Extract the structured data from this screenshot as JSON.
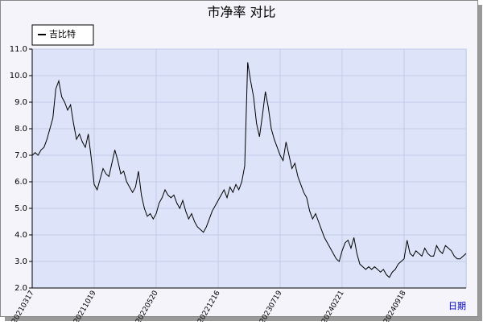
{
  "chart_data": {
    "type": "line",
    "title": "市净率  对比",
    "x_label": "日期",
    "categories": [
      "20210317",
      null,
      null,
      null,
      null,
      null,
      null,
      null,
      null,
      null,
      null,
      null,
      null,
      null,
      null,
      null,
      null,
      null,
      null,
      null,
      null,
      "20211019",
      null,
      null,
      null,
      null,
      null,
      null,
      null,
      null,
      null,
      null,
      null,
      null,
      null,
      null,
      null,
      null,
      null,
      null,
      null,
      null,
      "20220520",
      null,
      null,
      null,
      null,
      null,
      null,
      null,
      null,
      null,
      null,
      null,
      null,
      null,
      null,
      null,
      null,
      null,
      null,
      null,
      null,
      "20221216",
      null,
      null,
      null,
      null,
      null,
      null,
      null,
      null,
      null,
      null,
      null,
      null,
      null,
      null,
      null,
      null,
      null,
      null,
      null,
      null,
      "20230719",
      null,
      null,
      null,
      null,
      null,
      null,
      null,
      null,
      null,
      null,
      null,
      null,
      null,
      null,
      null,
      null,
      null,
      null,
      null,
      null,
      "20240221",
      null,
      null,
      null,
      null,
      null,
      null,
      null,
      null,
      null,
      null,
      null,
      null,
      null,
      null,
      null,
      null,
      null,
      null,
      null,
      null,
      "20240918",
      null,
      null,
      null,
      null,
      null,
      null,
      null,
      null,
      null,
      null,
      null,
      null,
      null,
      null,
      null,
      null,
      null,
      null,
      null,
      null,
      null
    ],
    "series": [
      {
        "name": "吉比特",
        "color": "#000000",
        "values": [
          7.0,
          7.1,
          7.0,
          7.2,
          7.3,
          7.6,
          8.0,
          8.4,
          9.5,
          9.8,
          9.2,
          9.0,
          8.7,
          8.9,
          8.2,
          7.6,
          7.8,
          7.5,
          7.3,
          7.8,
          6.9,
          5.9,
          5.7,
          6.1,
          6.5,
          6.3,
          6.2,
          6.7,
          7.2,
          6.8,
          6.3,
          6.4,
          6.0,
          5.8,
          5.6,
          5.8,
          6.4,
          5.5,
          5.0,
          4.7,
          4.8,
          4.6,
          4.8,
          5.2,
          5.4,
          5.7,
          5.5,
          5.4,
          5.5,
          5.2,
          5.0,
          5.3,
          4.9,
          4.6,
          4.8,
          4.5,
          4.3,
          4.2,
          4.1,
          4.3,
          4.6,
          4.9,
          5.1,
          5.3,
          5.5,
          5.7,
          5.4,
          5.8,
          5.6,
          5.9,
          5.7,
          6.0,
          6.6,
          10.5,
          9.8,
          9.2,
          8.2,
          7.7,
          8.5,
          9.4,
          8.8,
          8.0,
          7.6,
          7.3,
          7.0,
          6.8,
          7.5,
          7.0,
          6.5,
          6.7,
          6.2,
          5.9,
          5.6,
          5.4,
          4.9,
          4.6,
          4.8,
          4.5,
          4.2,
          3.9,
          3.7,
          3.5,
          3.3,
          3.1,
          3.0,
          3.4,
          3.7,
          3.8,
          3.5,
          3.9,
          3.3,
          2.9,
          2.8,
          2.7,
          2.8,
          2.7,
          2.8,
          2.7,
          2.6,
          2.7,
          2.5,
          2.4,
          2.6,
          2.7,
          2.9,
          3.0,
          3.1,
          3.8,
          3.3,
          3.2,
          3.4,
          3.3,
          3.2,
          3.5,
          3.3,
          3.2,
          3.2,
          3.6,
          3.4,
          3.3,
          3.6,
          3.5,
          3.4,
          3.2,
          3.1,
          3.1,
          3.2,
          3.3
        ]
      }
    ],
    "ylim": [
      2.0,
      11.0
    ],
    "yticks": [
      {
        "value": 2,
        "label": "2.0"
      },
      {
        "value": 3,
        "label": "3.0"
      },
      {
        "value": 4,
        "label": "4.0"
      },
      {
        "value": 5,
        "label": "5.0"
      },
      {
        "value": 6,
        "label": "6.0"
      },
      {
        "value": 7,
        "label": "7.0"
      },
      {
        "value": 8,
        "label": "8.0"
      },
      {
        "value": 9,
        "label": "9.0"
      },
      {
        "value": 10,
        "label": "10.0"
      },
      {
        "value": 11,
        "label": "11.0"
      }
    ],
    "grid": true,
    "legend": "top-left"
  }
}
